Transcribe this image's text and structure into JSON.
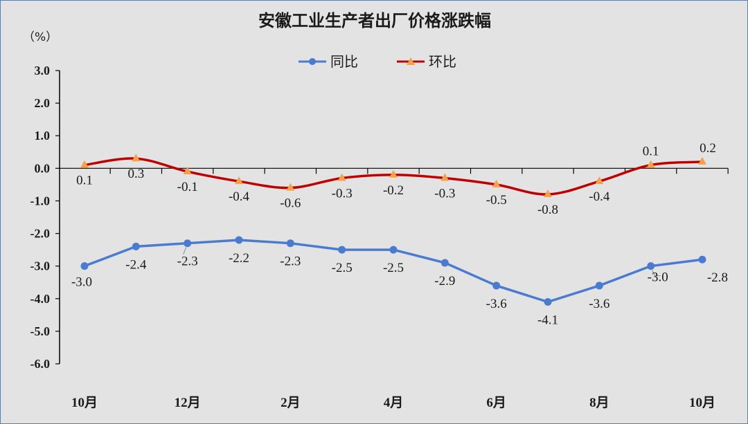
{
  "chart_data": {
    "type": "line",
    "title": "安徽工业生产者出厂价格涨跌幅",
    "unit_label": "（%）",
    "categories": [
      "10月",
      "",
      "12月",
      "",
      "2月",
      "",
      "4月",
      "",
      "6月",
      "",
      "8月",
      "",
      "10月"
    ],
    "ylim": [
      -6.0,
      3.0
    ],
    "yticks": [
      "3.0",
      "2.0",
      "1.0",
      "0.0",
      "-1.0",
      "-2.0",
      "-3.0",
      "-4.0",
      "-5.0",
      "-6.0"
    ],
    "legend_position": "top-center",
    "series": [
      {
        "name": "同比",
        "color": "#4a7bd0",
        "marker": "circle",
        "values": [
          -3.0,
          -2.4,
          -2.3,
          -2.2,
          -2.3,
          -2.5,
          -2.5,
          -2.9,
          -3.6,
          -4.1,
          -3.6,
          -3.0,
          -2.8
        ],
        "labels": [
          "-3.0",
          "-2.4",
          "-2.3",
          "-2.2",
          "-2.3",
          "-2.5",
          "-2.5",
          "-2.9",
          "-3.6",
          "-4.1",
          "-3.6",
          "-3.0",
          "-2.8"
        ]
      },
      {
        "name": "环比",
        "color": "#c00000",
        "marker_color": "#f5a04a",
        "marker": "triangle",
        "values": [
          0.1,
          0.3,
          -0.1,
          -0.4,
          -0.6,
          -0.3,
          -0.2,
          -0.3,
          -0.5,
          -0.8,
          -0.4,
          0.1,
          0.2
        ],
        "labels": [
          "0.1",
          "0.3",
          "-0.1",
          "-0.4",
          "-0.6",
          "-0.3",
          "-0.2",
          "-0.3",
          "-0.5",
          "-0.8",
          "-0.4",
          "0.1",
          "0.2"
        ]
      }
    ]
  }
}
